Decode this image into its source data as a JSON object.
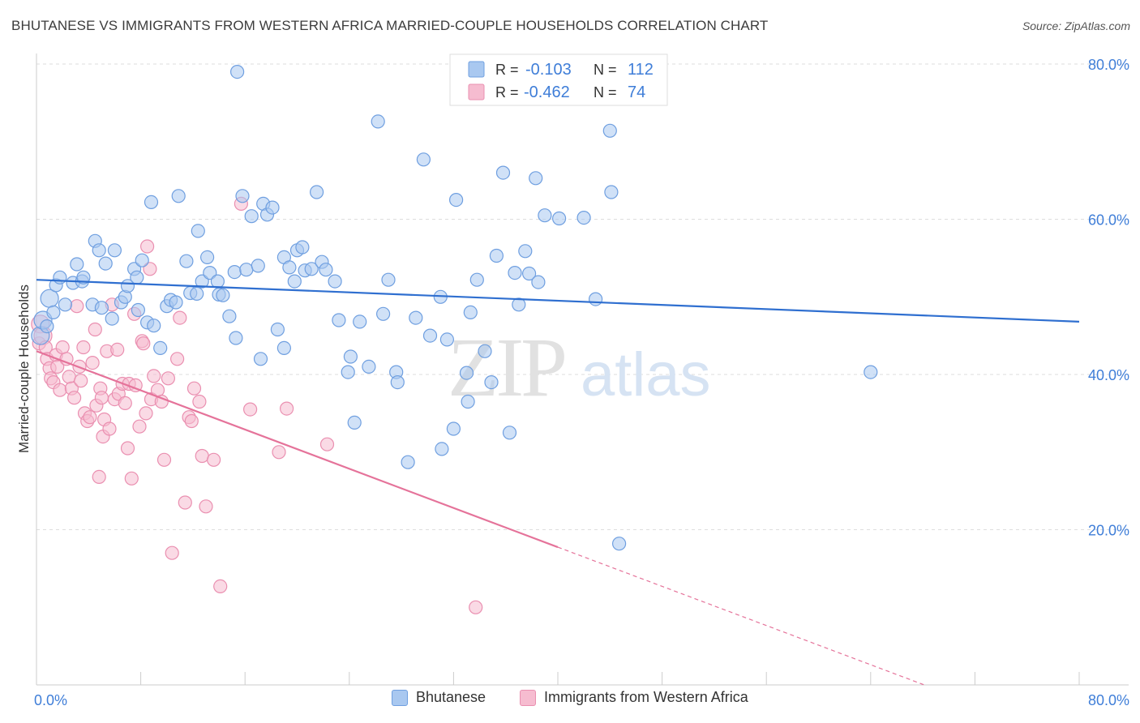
{
  "title": "BHUTANESE VS IMMIGRANTS FROM WESTERN AFRICA MARRIED-COUPLE HOUSEHOLDS CORRELATION CHART",
  "source": "Source: ZipAtlas.com",
  "watermark": {
    "zip": "ZIP",
    "atlas": "atlas"
  },
  "colors": {
    "blue_fill": "#a9c8f0",
    "blue_stroke": "#6f9fe0",
    "blue_line": "#2f6fd0",
    "pink_fill": "#f6bcd0",
    "pink_stroke": "#ea8fb0",
    "pink_line": "#e5739a",
    "axis_label": "#3f7ed8",
    "grid": "#dddddd"
  },
  "chart_data": {
    "type": "scatter",
    "xlabel": "",
    "ylabel": "Married-couple Households",
    "xlim": [
      0,
      80
    ],
    "ylim": [
      0,
      80
    ],
    "x_tick_labels": [
      "0.0%",
      "80.0%"
    ],
    "y_tick_labels": [
      "20.0%",
      "40.0%",
      "60.0%",
      "80.0%"
    ],
    "y_ticks": [
      20,
      40,
      60,
      80
    ],
    "grid": true,
    "legend_position": "top-center",
    "legend": [
      {
        "r_label": "R =",
        "r_value": "-0.103",
        "n_label": "N =",
        "n_value": "112"
      },
      {
        "r_label": "R =",
        "r_value": "-0.462",
        "n_label": "N =",
        "n_value": "74"
      }
    ],
    "series": [
      {
        "name": "Bhutanese",
        "color": "#a9c8f0",
        "trend": {
          "x": [
            0,
            80
          ],
          "y": [
            52.2,
            46.8
          ],
          "dashed_from": null
        },
        "points": [
          [
            0.3,
            45.0
          ],
          [
            0.5,
            47.0
          ],
          [
            0.8,
            46.2
          ],
          [
            1.0,
            49.8
          ],
          [
            1.3,
            48.0
          ],
          [
            1.5,
            51.5
          ],
          [
            1.8,
            52.5
          ],
          [
            2.2,
            49.0
          ],
          [
            2.8,
            51.8
          ],
          [
            3.1,
            54.2
          ],
          [
            3.5,
            52.0
          ],
          [
            3.6,
            52.5
          ],
          [
            4.3,
            49.0
          ],
          [
            4.5,
            57.2
          ],
          [
            4.8,
            56.0
          ],
          [
            5.0,
            48.6
          ],
          [
            5.3,
            54.3
          ],
          [
            5.8,
            47.2
          ],
          [
            6.0,
            56.0
          ],
          [
            6.5,
            49.3
          ],
          [
            6.8,
            50.0
          ],
          [
            7.0,
            51.4
          ],
          [
            7.5,
            53.6
          ],
          [
            7.7,
            52.5
          ],
          [
            7.8,
            48.3
          ],
          [
            8.1,
            54.7
          ],
          [
            8.5,
            46.7
          ],
          [
            8.8,
            62.2
          ],
          [
            9.0,
            46.3
          ],
          [
            9.5,
            43.4
          ],
          [
            10.0,
            48.8
          ],
          [
            10.3,
            49.6
          ],
          [
            10.7,
            49.3
          ],
          [
            10.9,
            63.0
          ],
          [
            11.5,
            54.6
          ],
          [
            11.8,
            50.5
          ],
          [
            12.3,
            50.4
          ],
          [
            12.4,
            58.5
          ],
          [
            12.7,
            52.0
          ],
          [
            13.1,
            55.1
          ],
          [
            13.3,
            53.1
          ],
          [
            13.9,
            52.0
          ],
          [
            14.0,
            50.3
          ],
          [
            14.3,
            50.2
          ],
          [
            15.2,
            53.2
          ],
          [
            15.3,
            44.7
          ],
          [
            15.4,
            79.0
          ],
          [
            15.8,
            63.0
          ],
          [
            16.1,
            53.5
          ],
          [
            16.5,
            60.4
          ],
          [
            17.0,
            54.0
          ],
          [
            17.2,
            42.0
          ],
          [
            17.4,
            62.0
          ],
          [
            17.7,
            60.6
          ],
          [
            18.1,
            61.5
          ],
          [
            18.5,
            45.8
          ],
          [
            19.0,
            43.4
          ],
          [
            19.0,
            55.1
          ],
          [
            19.4,
            53.8
          ],
          [
            19.8,
            52.0
          ],
          [
            20.0,
            56.0
          ],
          [
            20.4,
            56.4
          ],
          [
            20.6,
            53.4
          ],
          [
            21.1,
            53.6
          ],
          [
            21.5,
            63.5
          ],
          [
            21.9,
            54.5
          ],
          [
            22.2,
            53.5
          ],
          [
            22.9,
            52.0
          ],
          [
            23.2,
            47.0
          ],
          [
            23.9,
            40.3
          ],
          [
            24.1,
            42.3
          ],
          [
            24.4,
            33.8
          ],
          [
            24.8,
            46.8
          ],
          [
            25.5,
            41.0
          ],
          [
            26.2,
            72.6
          ],
          [
            26.6,
            47.8
          ],
          [
            27.0,
            52.2
          ],
          [
            27.6,
            40.3
          ],
          [
            27.7,
            39.0
          ],
          [
            28.5,
            28.7
          ],
          [
            29.1,
            47.3
          ],
          [
            29.7,
            67.7
          ],
          [
            30.2,
            45.0
          ],
          [
            31.0,
            50.0
          ],
          [
            31.1,
            30.4
          ],
          [
            31.5,
            44.5
          ],
          [
            32.0,
            33.0
          ],
          [
            32.2,
            62.5
          ],
          [
            33.0,
            40.2
          ],
          [
            33.1,
            36.5
          ],
          [
            33.3,
            48.0
          ],
          [
            33.8,
            52.2
          ],
          [
            34.4,
            43.0
          ],
          [
            34.9,
            39.0
          ],
          [
            35.3,
            55.3
          ],
          [
            35.8,
            66.0
          ],
          [
            36.3,
            32.5
          ],
          [
            36.7,
            53.1
          ],
          [
            37.0,
            49.0
          ],
          [
            37.5,
            55.9
          ],
          [
            37.8,
            53.0
          ],
          [
            38.3,
            65.3
          ],
          [
            38.5,
            51.9
          ],
          [
            39.0,
            60.5
          ],
          [
            40.1,
            60.1
          ],
          [
            42.0,
            60.2
          ],
          [
            42.9,
            49.7
          ],
          [
            44.0,
            71.4
          ],
          [
            44.1,
            63.5
          ],
          [
            44.7,
            18.2
          ],
          [
            64.0,
            40.3
          ],
          [
            14.8,
            47.5
          ]
        ]
      },
      {
        "name": "Immigrants from Western Africa",
        "color": "#f6bcd0",
        "trend": {
          "x": [
            0,
            80
          ],
          "y": [
            43.0,
            -7.5
          ],
          "dashed_from": 40
        },
        "points": [
          [
            0.2,
            44.0
          ],
          [
            0.3,
            46.5
          ],
          [
            0.5,
            45.0
          ],
          [
            0.7,
            43.5
          ],
          [
            0.8,
            42.0
          ],
          [
            1.0,
            40.8
          ],
          [
            1.1,
            39.5
          ],
          [
            1.3,
            39.0
          ],
          [
            1.5,
            42.5
          ],
          [
            1.6,
            41.0
          ],
          [
            1.8,
            38.0
          ],
          [
            2.0,
            43.5
          ],
          [
            2.3,
            42.0
          ],
          [
            2.5,
            39.7
          ],
          [
            2.7,
            38.2
          ],
          [
            2.9,
            37.0
          ],
          [
            3.1,
            48.8
          ],
          [
            3.3,
            41.0
          ],
          [
            3.4,
            39.2
          ],
          [
            3.6,
            43.5
          ],
          [
            3.7,
            35.0
          ],
          [
            3.9,
            34.0
          ],
          [
            4.1,
            34.5
          ],
          [
            4.3,
            41.5
          ],
          [
            4.5,
            45.8
          ],
          [
            4.6,
            36.0
          ],
          [
            4.8,
            26.8
          ],
          [
            4.9,
            38.2
          ],
          [
            5.1,
            32.0
          ],
          [
            5.2,
            34.2
          ],
          [
            5.4,
            43.0
          ],
          [
            5.6,
            33.0
          ],
          [
            5.8,
            49.0
          ],
          [
            6.0,
            36.8
          ],
          [
            6.2,
            43.2
          ],
          [
            6.3,
            37.5
          ],
          [
            6.6,
            38.8
          ],
          [
            6.8,
            36.3
          ],
          [
            7.0,
            30.5
          ],
          [
            7.1,
            38.8
          ],
          [
            7.3,
            26.6
          ],
          [
            7.5,
            47.8
          ],
          [
            7.6,
            38.6
          ],
          [
            7.9,
            33.3
          ],
          [
            8.1,
            44.3
          ],
          [
            8.2,
            44.0
          ],
          [
            8.4,
            35.0
          ],
          [
            8.5,
            56.5
          ],
          [
            8.7,
            53.6
          ],
          [
            8.8,
            36.8
          ],
          [
            9.0,
            39.8
          ],
          [
            9.3,
            38.0
          ],
          [
            9.6,
            36.5
          ],
          [
            9.8,
            29.0
          ],
          [
            10.1,
            39.5
          ],
          [
            10.4,
            17.0
          ],
          [
            10.8,
            42.0
          ],
          [
            11.0,
            47.3
          ],
          [
            11.4,
            23.5
          ],
          [
            11.7,
            34.5
          ],
          [
            11.9,
            34.0
          ],
          [
            12.1,
            38.2
          ],
          [
            12.5,
            36.5
          ],
          [
            12.7,
            29.5
          ],
          [
            13.0,
            23.0
          ],
          [
            13.6,
            29.0
          ],
          [
            14.1,
            12.7
          ],
          [
            15.7,
            62.0
          ],
          [
            16.4,
            35.5
          ],
          [
            18.6,
            30.0
          ],
          [
            19.2,
            35.6
          ],
          [
            22.3,
            31.0
          ],
          [
            33.7,
            10.0
          ],
          [
            5.0,
            37.0
          ]
        ]
      }
    ]
  },
  "bottom_legend": [
    {
      "label": "Bhutanese"
    },
    {
      "label": "Immigrants from Western Africa"
    }
  ]
}
